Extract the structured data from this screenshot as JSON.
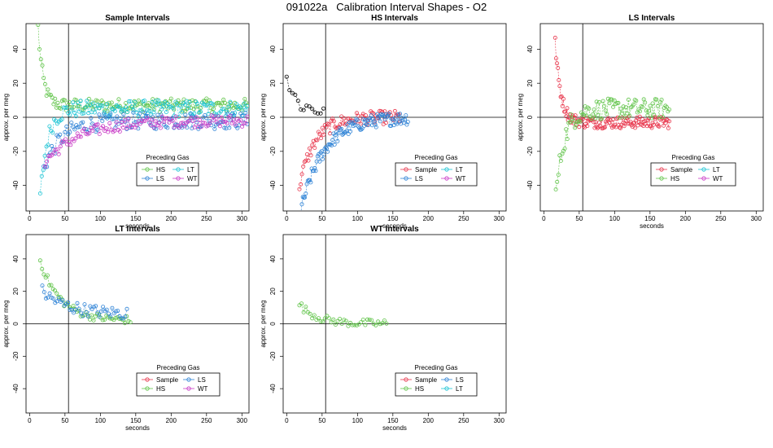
{
  "figure": {
    "title": "091022a   Calibration Interval Shapes - O2"
  },
  "colors": {
    "Sample": "#e8374d",
    "HS": "#61c44a",
    "LS": "#2f83d6",
    "LT": "#1cc4d4",
    "WT": "#c93ac6",
    "black": "#000000"
  },
  "chart_data": [
    {
      "type": "scatter",
      "title": "Sample Intervals",
      "xlabel": "seconds",
      "ylabel": "approx. per meg",
      "xlim": [
        -5,
        310
      ],
      "ylim": [
        -55,
        55
      ],
      "xticks": [
        0,
        50,
        100,
        150,
        200,
        250,
        300
      ],
      "yticks": [
        -40,
        -20,
        0,
        20,
        40
      ],
      "vline": 55,
      "hline": 0,
      "legend": {
        "title": "Preceding Gas",
        "entries": [
          "HS",
          "LT",
          "LS",
          "WT"
        ]
      },
      "series": [
        {
          "name": "HS",
          "start": 12,
          "step": 2,
          "start_value": 53,
          "end_value": 7,
          "tau": 7,
          "noise": 4,
          "end": 308
        },
        {
          "name": "LT",
          "start": 15,
          "step": 2.2,
          "start_value": -48,
          "end_value": 5,
          "tau": 10,
          "noise": 5,
          "end": 308
        },
        {
          "name": "LS",
          "start": 20,
          "step": 2.3,
          "start_value": -30,
          "end_value": -2,
          "tau": 25,
          "noise": 5,
          "end": 308
        },
        {
          "name": "WT",
          "start": 22,
          "step": 2.4,
          "start_value": -26,
          "end_value": -2,
          "tau": 50,
          "noise": 3.5,
          "end": 308
        }
      ]
    },
    {
      "type": "scatter",
      "title": "HS Intervals",
      "xlabel": "seconds",
      "ylabel": "approx. per meg",
      "xlim": [
        -5,
        310
      ],
      "ylim": [
        -55,
        55
      ],
      "xticks": [
        0,
        50,
        100,
        150,
        200,
        250,
        300
      ],
      "yticks": [
        -40,
        -20,
        0,
        20,
        40
      ],
      "vline": 55,
      "hline": 0,
      "legend": {
        "title": "Preceding Gas",
        "entries": [
          "Sample",
          "LT",
          "LS",
          "WT"
        ]
      },
      "series": [
        {
          "name": "Sample",
          "start": 18,
          "step": 1.8,
          "start_value": -40,
          "end_value": 0,
          "tau": 22,
          "noise": 4,
          "end": 162
        },
        {
          "name": "LS",
          "start": 20,
          "step": 1.4,
          "start_value": -55,
          "end_value": 0,
          "tau": 32,
          "noise": 4,
          "end": 172
        },
        {
          "name": "black",
          "start": 0,
          "step": 4,
          "start_value": 24,
          "end_value": 4,
          "tau": 12,
          "noise": 5,
          "end": 52
        }
      ]
    },
    {
      "type": "scatter",
      "title": "LS Intervals",
      "xlabel": "seconds",
      "ylabel": "approx. per meg",
      "xlim": [
        -5,
        310
      ],
      "ylim": [
        -55,
        55
      ],
      "xticks": [
        0,
        50,
        100,
        150,
        200,
        250,
        300
      ],
      "yticks": [
        -40,
        -20,
        0,
        20,
        40
      ],
      "vline": 55,
      "hline": 0,
      "legend": {
        "title": "Preceding Gas",
        "entries": [
          "Sample",
          "LT",
          "HS",
          "WT"
        ]
      },
      "series": [
        {
          "name": "Sample",
          "start": 16,
          "step": 1.3,
          "start_value": 44,
          "end_value": -3,
          "tau": 8,
          "noise": 3.5,
          "end": 178
        },
        {
          "name": "HS",
          "start": 17,
          "step": 1.8,
          "start_value": -46,
          "end_value": 5,
          "tau": 12,
          "noise": 6,
          "end": 178
        }
      ]
    },
    {
      "type": "scatter",
      "title": "LT Intervals",
      "xlabel": "seconds",
      "ylabel": "approx. per meg",
      "xlim": [
        -5,
        310
      ],
      "ylim": [
        -55,
        55
      ],
      "xticks": [
        0,
        50,
        100,
        150,
        200,
        250,
        300
      ],
      "yticks": [
        -40,
        -20,
        0,
        20,
        40
      ],
      "vline": 55,
      "hline": 0,
      "legend": {
        "title": "Preceding Gas",
        "entries": [
          "Sample",
          "LS",
          "HS",
          "WT"
        ]
      },
      "series": [
        {
          "name": "HS",
          "start": 15,
          "step": 2.6,
          "start_value": 39,
          "end_value": 2,
          "tau": 28,
          "noise": 2.5,
          "end": 143
        },
        {
          "name": "LS",
          "start": 18,
          "step": 2.6,
          "start_value": 20,
          "end_value": 6,
          "tau": 35,
          "noise": 4,
          "end": 140
        }
      ]
    },
    {
      "type": "scatter",
      "title": "WT Intervals",
      "xlabel": "seconds",
      "ylabel": "approx. per meg",
      "xlim": [
        -5,
        310
      ],
      "ylim": [
        -55,
        55
      ],
      "xticks": [
        0,
        50,
        100,
        150,
        200,
        250,
        300
      ],
      "yticks": [
        -40,
        -20,
        0,
        20,
        40
      ],
      "vline": 55,
      "hline": 0,
      "legend": {
        "title": "Preceding Gas",
        "entries": [
          "Sample",
          "LS",
          "HS",
          "LT"
        ]
      },
      "series": [
        {
          "name": "HS",
          "start": 18,
          "step": 3,
          "start_value": 12,
          "end_value": 0,
          "tau": 25,
          "noise": 2.5,
          "end": 142
        }
      ]
    }
  ]
}
